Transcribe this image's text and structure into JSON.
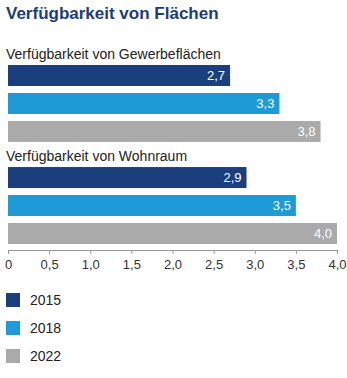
{
  "chart_data": {
    "type": "bar",
    "title": "Verfügbarkeit von Flächen",
    "orientation": "horizontal",
    "categories": [
      "Verfügbarkeit von Gewerbeflächen",
      "Verfügbarkeit von Wohnraum"
    ],
    "series": [
      {
        "name": "2015",
        "color": "#1b3f7d",
        "values": [
          2.7,
          2.9
        ],
        "value_labels": [
          "2,7",
          "2,9"
        ]
      },
      {
        "name": "2018",
        "color": "#1e9bd7",
        "values": [
          3.3,
          3.5
        ],
        "value_labels": [
          "3,3",
          "3,5"
        ]
      },
      {
        "name": "2022",
        "color": "#aaaaaa",
        "values": [
          3.8,
          4.0
        ],
        "value_labels": [
          "3,8",
          "4,0"
        ]
      }
    ],
    "xlim": [
      0,
      4
    ],
    "xticks": [
      0,
      {
        "value": 0.5,
        "label": "0,5"
      },
      {
        "value": 1,
        "label": "1,0"
      },
      {
        "value": 1.5,
        "label": "1,5"
      },
      {
        "value": 2,
        "label": "2,0"
      },
      {
        "value": 2.5,
        "label": "2,5"
      },
      {
        "value": 3,
        "label": "3,0"
      },
      {
        "value": 3.5,
        "label": "3,5"
      },
      {
        "value": 4,
        "label": "4,0"
      }
    ],
    "data_labels": true,
    "grid": false,
    "legend": "bottom"
  }
}
